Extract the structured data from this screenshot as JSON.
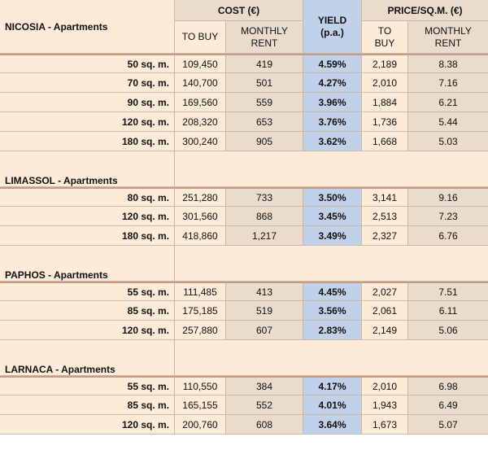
{
  "header": {
    "cost_label": "COST (€)",
    "yield_label_line1": "YIELD",
    "yield_label_line2": "(p.a.)",
    "price_label": "PRICE/SQ.M. (€)",
    "to_buy_line1": "TO BUY",
    "monthly_line1": "MONTHLY",
    "monthly_line2": "RENT",
    "to_line1": "TO",
    "buy_line2": "BUY"
  },
  "sections": [
    {
      "city": "NICOSIA - Apartments",
      "rows": [
        {
          "size": "50 sq. m.",
          "to_buy": "109,450",
          "monthly_rent": "419",
          "yield": "4.59%",
          "price_to_buy": "2,189",
          "price_rent": "8.38"
        },
        {
          "size": "70 sq. m.",
          "to_buy": "140,700",
          "monthly_rent": "501",
          "yield": "4.27%",
          "price_to_buy": "2,010",
          "price_rent": "7.16"
        },
        {
          "size": "90 sq. m.",
          "to_buy": "169,560",
          "monthly_rent": "559",
          "yield": "3.96%",
          "price_to_buy": "1,884",
          "price_rent": "6.21"
        },
        {
          "size": "120 sq. m.",
          "to_buy": "208,320",
          "monthly_rent": "653",
          "yield": "3.76%",
          "price_to_buy": "1,736",
          "price_rent": "5.44"
        },
        {
          "size": "180 sq. m.",
          "to_buy": "300,240",
          "monthly_rent": "905",
          "yield": "3.62%",
          "price_to_buy": "1,668",
          "price_rent": "5.03"
        }
      ]
    },
    {
      "city": "LIMASSOL - Apartments",
      "rows": [
        {
          "size": "80 sq. m.",
          "to_buy": "251,280",
          "monthly_rent": "733",
          "yield": "3.50%",
          "price_to_buy": "3,141",
          "price_rent": "9.16"
        },
        {
          "size": "120 sq. m.",
          "to_buy": "301,560",
          "monthly_rent": "868",
          "yield": "3.45%",
          "price_to_buy": "2,513",
          "price_rent": "7.23"
        },
        {
          "size": "180 sq. m.",
          "to_buy": "418,860",
          "monthly_rent": "1,217",
          "yield": "3.49%",
          "price_to_buy": "2,327",
          "price_rent": "6.76"
        }
      ]
    },
    {
      "city": "PAPHOS - Apartments",
      "rows": [
        {
          "size": "55 sq. m.",
          "to_buy": "111,485",
          "monthly_rent": "413",
          "yield": "4.45%",
          "price_to_buy": "2,027",
          "price_rent": "7.51"
        },
        {
          "size": "85 sq. m.",
          "to_buy": "175,185",
          "monthly_rent": "519",
          "yield": "3.56%",
          "price_to_buy": "2,061",
          "price_rent": "6.11"
        },
        {
          "size": "120 sq. m.",
          "to_buy": "257,880",
          "monthly_rent": "607",
          "yield": "2.83%",
          "price_to_buy": "2,149",
          "price_rent": "5.06"
        }
      ]
    },
    {
      "city": "LARNACA - Apartments",
      "rows": [
        {
          "size": "55 sq. m.",
          "to_buy": "110,550",
          "monthly_rent": "384",
          "yield": "4.17%",
          "price_to_buy": "2,010",
          "price_rent": "6.98"
        },
        {
          "size": "85 sq. m.",
          "to_buy": "165,155",
          "monthly_rent": "552",
          "yield": "4.01%",
          "price_to_buy": "1,943",
          "price_rent": "6.49"
        },
        {
          "size": "120 sq. m.",
          "to_buy": "200,760",
          "monthly_rent": "608",
          "yield": "3.64%",
          "price_to_buy": "1,673",
          "price_rent": "5.07"
        }
      ]
    }
  ]
}
